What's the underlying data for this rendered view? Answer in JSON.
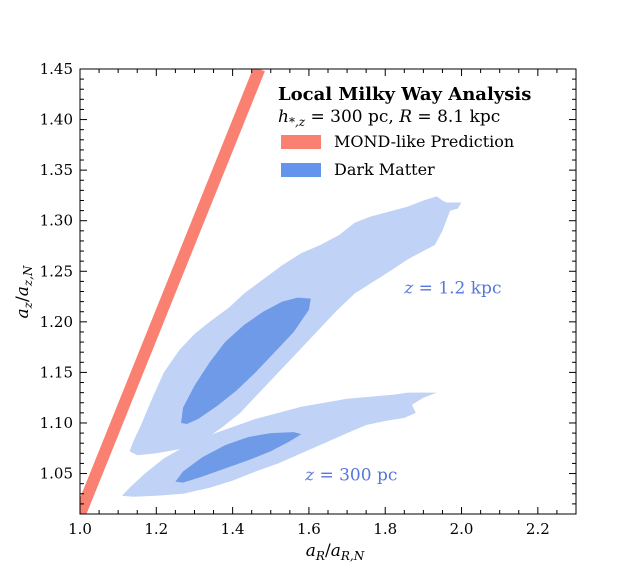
{
  "chart_data": {
    "type": "contour",
    "title": "Local Milky Way Analysis",
    "subtitle": "h*,z = 300 pc, R = 8.1 kpc",
    "subtitle_parts": {
      "h_main": "h",
      "h_sub": "*,z",
      "eq1": " = 300 pc, ",
      "r_var": "R",
      "eq2": " = 8.1 kpc"
    },
    "xlabel": "aR/aR,N",
    "xlabel_parts": {
      "main": "a",
      "sub": "R",
      "sep": "/",
      "main2": "a",
      "sub2": "R,N"
    },
    "ylabel": "az/az,N",
    "ylabel_parts": {
      "main": "a",
      "sub": "z",
      "sep": "/",
      "main2": "a",
      "sub2": "z,N"
    },
    "xlim": [
      1.0,
      2.3
    ],
    "ylim": [
      1.01,
      1.45
    ],
    "xticks": [
      1.0,
      1.2,
      1.4,
      1.6,
      1.8,
      2.0,
      2.2
    ],
    "xtick_labels": [
      "1.0",
      "1.2",
      "1.4",
      "1.6",
      "1.8",
      "2.0",
      "2.2"
    ],
    "yticks": [
      1.05,
      1.1,
      1.15,
      1.2,
      1.25,
      1.3,
      1.35,
      1.4,
      1.45
    ],
    "ytick_labels": [
      "1.05",
      "1.10",
      "1.15",
      "1.20",
      "1.25",
      "1.30",
      "1.35",
      "1.40",
      "1.45"
    ],
    "legend": [
      {
        "label": "MOND-like Prediction",
        "color": "#fa8072"
      },
      {
        "label": "Dark Matter",
        "color": "#6495ed"
      }
    ],
    "mond_line": {
      "x": [
        1.0,
        1.47
      ],
      "y": [
        1.01,
        1.45
      ],
      "color": "#fa8072"
    },
    "contours": [
      {
        "name": "z = 1.2 kpc",
        "annotation": "z = 1.2 kpc",
        "annotation_parts": {
          "var": "z",
          "rest": " = 1.2 kpc"
        },
        "annotation_pos": [
          1.85,
          1.228
        ],
        "outer": {
          "color": "#c0d2f5",
          "points": [
            [
              1.13,
              1.072
            ],
            [
              1.14,
              1.082
            ],
            [
              1.16,
              1.098
            ],
            [
              1.19,
              1.125
            ],
            [
              1.22,
              1.15
            ],
            [
              1.26,
              1.172
            ],
            [
              1.3,
              1.188
            ],
            [
              1.34,
              1.2
            ],
            [
              1.39,
              1.214
            ],
            [
              1.43,
              1.228
            ],
            [
              1.48,
              1.242
            ],
            [
              1.53,
              1.256
            ],
            [
              1.58,
              1.268
            ],
            [
              1.63,
              1.276
            ],
            [
              1.68,
              1.286
            ],
            [
              1.72,
              1.298
            ],
            [
              1.76,
              1.304
            ],
            [
              1.82,
              1.31
            ],
            [
              1.86,
              1.314
            ],
            [
              1.9,
              1.32
            ],
            [
              1.935,
              1.324
            ],
            [
              1.95,
              1.32
            ],
            [
              1.96,
              1.318
            ],
            [
              2.0,
              1.318
            ],
            [
              1.99,
              1.312
            ],
            [
              1.97,
              1.31
            ],
            [
              1.95,
              1.29
            ],
            [
              1.93,
              1.276
            ],
            [
              1.9,
              1.27
            ],
            [
              1.86,
              1.262
            ],
            [
              1.82,
              1.252
            ],
            [
              1.77,
              1.24
            ],
            [
              1.72,
              1.228
            ],
            [
              1.67,
              1.21
            ],
            [
              1.62,
              1.19
            ],
            [
              1.57,
              1.17
            ],
            [
              1.52,
              1.15
            ],
            [
              1.47,
              1.13
            ],
            [
              1.42,
              1.11
            ],
            [
              1.37,
              1.095
            ],
            [
              1.32,
              1.082
            ],
            [
              1.26,
              1.074
            ],
            [
              1.2,
              1.07
            ],
            [
              1.15,
              1.068
            ]
          ]
        },
        "inner": {
          "color": "#6f9ae8",
          "points": [
            [
              1.265,
              1.1
            ],
            [
              1.27,
              1.115
            ],
            [
              1.3,
              1.137
            ],
            [
              1.34,
              1.16
            ],
            [
              1.38,
              1.18
            ],
            [
              1.43,
              1.197
            ],
            [
              1.48,
              1.21
            ],
            [
              1.53,
              1.22
            ],
            [
              1.57,
              1.224
            ],
            [
              1.605,
              1.223
            ],
            [
              1.6,
              1.212
            ],
            [
              1.56,
              1.19
            ],
            [
              1.51,
              1.17
            ],
            [
              1.46,
              1.15
            ],
            [
              1.41,
              1.132
            ],
            [
              1.36,
              1.117
            ],
            [
              1.31,
              1.104
            ],
            [
              1.28,
              1.099
            ]
          ]
        }
      },
      {
        "name": "z = 300 pc",
        "annotation": "z = 300 pc",
        "annotation_parts": {
          "var": "z",
          "rest": " = 300 pc"
        },
        "annotation_pos": [
          1.59,
          1.043
        ],
        "outer": {
          "color": "#c0d2f5",
          "points": [
            [
              1.11,
              1.028
            ],
            [
              1.13,
              1.036
            ],
            [
              1.17,
              1.05
            ],
            [
              1.22,
              1.065
            ],
            [
              1.28,
              1.078
            ],
            [
              1.34,
              1.088
            ],
            [
              1.4,
              1.096
            ],
            [
              1.46,
              1.104
            ],
            [
              1.52,
              1.11
            ],
            [
              1.58,
              1.116
            ],
            [
              1.64,
              1.12
            ],
            [
              1.7,
              1.124
            ],
            [
              1.76,
              1.126
            ],
            [
              1.82,
              1.128
            ],
            [
              1.86,
              1.13
            ],
            [
              1.9,
              1.13
            ],
            [
              1.935,
              1.13
            ],
            [
              1.9,
              1.125
            ],
            [
              1.87,
              1.118
            ],
            [
              1.88,
              1.11
            ],
            [
              1.85,
              1.105
            ],
            [
              1.8,
              1.102
            ],
            [
              1.75,
              1.098
            ],
            [
              1.7,
              1.09
            ],
            [
              1.64,
              1.08
            ],
            [
              1.58,
              1.07
            ],
            [
              1.52,
              1.06
            ],
            [
              1.46,
              1.052
            ],
            [
              1.4,
              1.043
            ],
            [
              1.34,
              1.036
            ],
            [
              1.27,
              1.03
            ],
            [
              1.2,
              1.028
            ],
            [
              1.14,
              1.027
            ]
          ]
        },
        "inner": {
          "color": "#6f9ae8",
          "points": [
            [
              1.25,
              1.042
            ],
            [
              1.27,
              1.052
            ],
            [
              1.32,
              1.066
            ],
            [
              1.38,
              1.078
            ],
            [
              1.44,
              1.086
            ],
            [
              1.5,
              1.09
            ],
            [
              1.56,
              1.091
            ],
            [
              1.58,
              1.089
            ],
            [
              1.55,
              1.082
            ],
            [
              1.5,
              1.072
            ],
            [
              1.44,
              1.063
            ],
            [
              1.38,
              1.055
            ],
            [
              1.32,
              1.047
            ],
            [
              1.27,
              1.041
            ]
          ]
        }
      }
    ]
  }
}
